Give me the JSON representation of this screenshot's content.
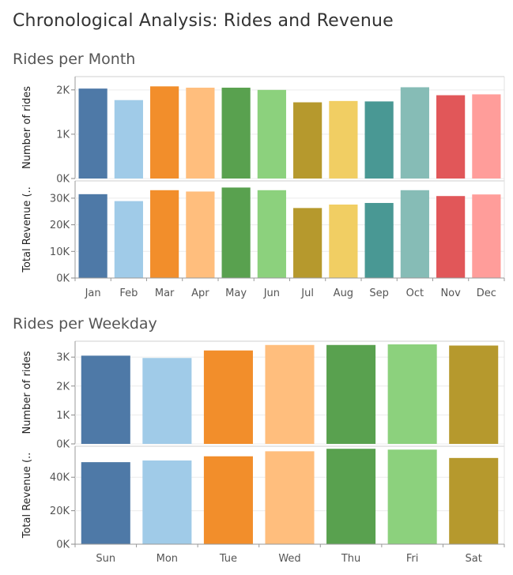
{
  "title": "Chronological Analysis: Rides and Revenue",
  "colors": [
    "#4e79a7",
    "#a0cbe8",
    "#f28e2b",
    "#ffbe7d",
    "#59a14f",
    "#8cd17d",
    "#b6992d",
    "#f1ce63",
    "#499894",
    "#86bcb6",
    "#e15759",
    "#ff9d9a"
  ],
  "chart_data": [
    {
      "type": "bar",
      "title": "Rides per Month",
      "categories": [
        "Jan",
        "Feb",
        "Mar",
        "Apr",
        "May",
        "Jun",
        "Jul",
        "Aug",
        "Sep",
        "Oct",
        "Nov",
        "Dec"
      ],
      "panels": [
        {
          "ylabel": "Number of rides",
          "ylim": [
            0,
            2300
          ],
          "yticks": [
            0,
            1000,
            2000
          ],
          "ytick_labels": [
            "0K",
            "1K",
            "2K"
          ],
          "values": [
            2030,
            1770,
            2080,
            2050,
            2050,
            2000,
            1720,
            1750,
            1740,
            2060,
            1880,
            1900
          ]
        },
        {
          "ylabel": "Total Revenue (..",
          "ylim": [
            0,
            36500
          ],
          "yticks": [
            0,
            10000,
            20000,
            30000
          ],
          "ytick_labels": [
            "0K",
            "10K",
            "20K",
            "30K"
          ],
          "values": [
            31500,
            28900,
            33000,
            32500,
            34000,
            33000,
            26300,
            27600,
            28200,
            33000,
            30800,
            31400
          ]
        }
      ]
    },
    {
      "type": "bar",
      "title": "Rides per Weekday",
      "categories": [
        "Sun",
        "Mon",
        "Tue",
        "Wed",
        "Thu",
        "Fri",
        "Sat"
      ],
      "panels": [
        {
          "ylabel": "Number of rides",
          "ylim": [
            0,
            3550
          ],
          "yticks": [
            0,
            1000,
            2000,
            3000
          ],
          "ytick_labels": [
            "0K",
            "1K",
            "2K",
            "3K"
          ],
          "values": [
            3050,
            2970,
            3230,
            3420,
            3420,
            3440,
            3400
          ]
        },
        {
          "ylabel": "Total Revenue (..",
          "ylim": [
            0,
            58500
          ],
          "yticks": [
            0,
            20000,
            40000
          ],
          "ytick_labels": [
            "0K",
            "20K",
            "40K"
          ],
          "values": [
            49000,
            50000,
            52500,
            55500,
            57000,
            56500,
            51500
          ]
        }
      ]
    }
  ]
}
